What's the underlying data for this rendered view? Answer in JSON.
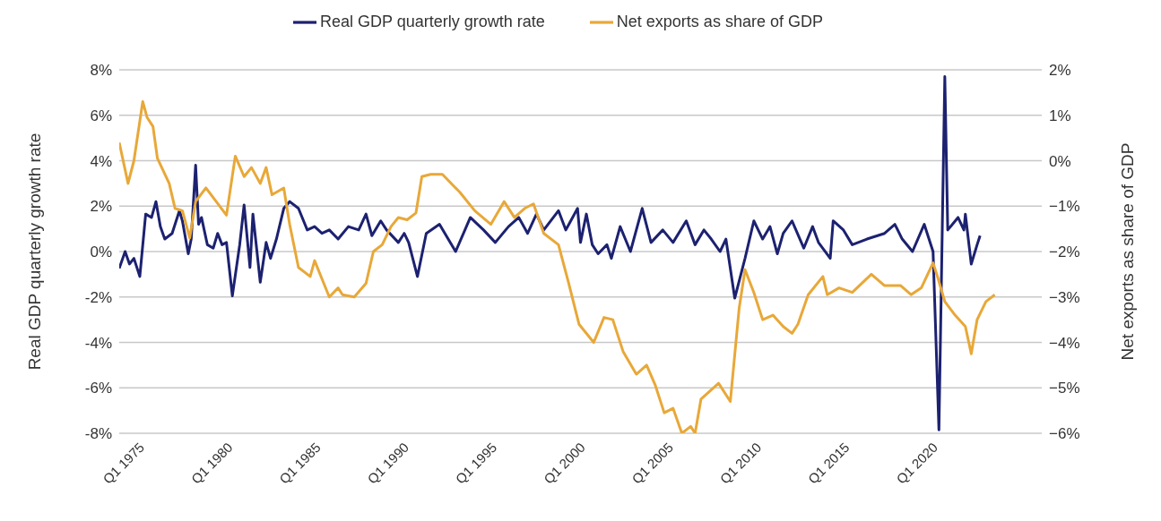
{
  "chart_data": {
    "type": "line",
    "ylabel": "Real GDP quarterly growth rate",
    "y2label": "Net exports as share of GDP",
    "legend": "top",
    "grid": "y",
    "line_style": "solid",
    "xlim": [
      "1973-09",
      "2026-01"
    ],
    "xticks": [
      {
        "value": "1975-01",
        "label": "Q1 1975"
      },
      {
        "value": "1980-01",
        "label": "Q1 1980"
      },
      {
        "value": "1985-01",
        "label": "Q1 1985"
      },
      {
        "value": "1990-01",
        "label": "Q1 1990"
      },
      {
        "value": "1995-01",
        "label": "Q1 1995"
      },
      {
        "value": "2000-01",
        "label": "Q1 2000"
      },
      {
        "value": "2005-01",
        "label": "Q1 2005"
      },
      {
        "value": "2010-01",
        "label": "Q1 2010"
      },
      {
        "value": "2015-01",
        "label": "Q1 2015"
      },
      {
        "value": "2020-01",
        "label": "Q1 2020"
      }
    ],
    "ylim": [
      -8,
      8
    ],
    "yticks": [
      {
        "value": -8,
        "label": "-8%"
      },
      {
        "value": -6,
        "label": "-6%"
      },
      {
        "value": -4,
        "label": "-4%"
      },
      {
        "value": -2,
        "label": "-2%"
      },
      {
        "value": 0,
        "label": "0%"
      },
      {
        "value": 2,
        "label": "2%"
      },
      {
        "value": 4,
        "label": "4%"
      },
      {
        "value": 6,
        "label": "6%"
      },
      {
        "value": 8,
        "label": "8%"
      }
    ],
    "y2lim": [
      -6,
      2
    ],
    "y2ticks": [
      {
        "value": -6,
        "label": "−6%"
      },
      {
        "value": -5,
        "label": "−5%"
      },
      {
        "value": -4,
        "label": "−4%"
      },
      {
        "value": -3,
        "label": "−3%"
      },
      {
        "value": -2,
        "label": "−2%"
      },
      {
        "value": -1,
        "label": "−1%"
      },
      {
        "value": 0,
        "label": "0%"
      },
      {
        "value": 1,
        "label": "1%"
      },
      {
        "value": 2,
        "label": "2%"
      }
    ],
    "series": [
      {
        "name": "Real GDP quarterly growth rate",
        "color": "#1c2170",
        "x": [
          "1973-09",
          "1974-01",
          "1974-04",
          "1974-07",
          "1974-11",
          "1975-03",
          "1975-07",
          "1975-10",
          "1976-01",
          "1976-04",
          "1976-09",
          "1977-02",
          "1977-04",
          "1977-08",
          "1977-10",
          "1978-01",
          "1978-03",
          "1978-05",
          "1978-09",
          "1979-01",
          "1979-04",
          "1979-07",
          "1979-10",
          "1980-02",
          "1980-07",
          "1980-10",
          "1981-02",
          "1981-04",
          "1981-09",
          "1982-01",
          "1982-04",
          "1982-08",
          "1983-01",
          "1983-05",
          "1983-11",
          "1984-05",
          "1984-10",
          "1985-03",
          "1985-08",
          "1986-02",
          "1986-09",
          "1987-04",
          "1987-09",
          "1988-01",
          "1988-07",
          "1988-11",
          "1989-07",
          "1989-11",
          "1990-02",
          "1990-08",
          "1991-02",
          "1991-11",
          "1992-10",
          "1993-08",
          "1994-05",
          "1995-01",
          "1995-10",
          "1996-05",
          "1996-11",
          "1997-05",
          "1997-10",
          "1998-08",
          "1999-01",
          "1999-09",
          "1999-11",
          "2000-03",
          "2000-07",
          "2000-11",
          "2001-05",
          "2001-08",
          "2002-02",
          "2002-09",
          "2003-05",
          "2003-11",
          "2004-07",
          "2005-02",
          "2005-11",
          "2006-05",
          "2006-11",
          "2007-04",
          "2007-10",
          "2008-02",
          "2008-08",
          "2009-03",
          "2009-09",
          "2010-03",
          "2010-08",
          "2011-01",
          "2011-05",
          "2011-11",
          "2012-07",
          "2013-01",
          "2013-05",
          "2014-01",
          "2014-03",
          "2014-10",
          "2015-04",
          "2016-02",
          "2017-02",
          "2017-09",
          "2018-02",
          "2018-09",
          "2019-05",
          "2019-11",
          "2020-03",
          "2020-07",
          "2020-09",
          "2021-04",
          "2021-08",
          "2021-09",
          "2022-01",
          "2022-05",
          "2022-07"
        ],
        "values": [
          -0.74,
          0,
          -0.55,
          -0.3,
          -1.1,
          1.65,
          1.5,
          2.2,
          1.1,
          0.55,
          0.8,
          1.8,
          1.35,
          -0.1,
          0.55,
          3.8,
          1.2,
          1.5,
          0.3,
          0.15,
          0.8,
          0.3,
          0.4,
          -1.95,
          0.3,
          2.05,
          -0.7,
          1.65,
          -1.35,
          0.4,
          -0.3,
          0.55,
          1.9,
          2.2,
          1.9,
          0.95,
          1.1,
          0.8,
          0.95,
          0.55,
          1.1,
          0.95,
          1.65,
          0.7,
          1.35,
          0.95,
          0.4,
          0.8,
          0.4,
          -1.1,
          0.8,
          1.2,
          0,
          1.5,
          0.95,
          0.4,
          1.1,
          1.5,
          0.8,
          1.65,
          0.95,
          1.8,
          0.95,
          1.9,
          0.4,
          1.65,
          0.3,
          -0.1,
          0.3,
          -0.3,
          1.1,
          0,
          1.9,
          0.4,
          0.95,
          0.4,
          1.35,
          0.3,
          0.95,
          0.55,
          0,
          0.55,
          -2.05,
          -0.3,
          1.35,
          0.55,
          1.1,
          -0.1,
          0.8,
          1.35,
          0.15,
          1.1,
          0.4,
          -0.3,
          1.35,
          0.95,
          0.3,
          0.55,
          0.8,
          1.2,
          0.55,
          0,
          1.2,
          0,
          -7.85,
          7.7,
          0.95,
          1.5,
          0.95,
          1.65,
          -0.55,
          0.3,
          0.7
        ]
      },
      {
        "name": "Net exports as share of GDP",
        "color": "#e8a838",
        "axis": "y2",
        "x": [
          "1973-09",
          "1974-03",
          "1974-07",
          "1975-01",
          "1975-04",
          "1975-08",
          "1975-11",
          "1976-07",
          "1976-11",
          "1977-04",
          "1977-09",
          "1978-01",
          "1978-08",
          "1979-03",
          "1979-10",
          "1980-04",
          "1980-10",
          "1981-03",
          "1981-09",
          "1982-01",
          "1982-05",
          "1983-01",
          "1983-05",
          "1983-11",
          "1984-07",
          "1984-10",
          "1985-03",
          "1985-08",
          "1986-02",
          "1986-05",
          "1987-01",
          "1987-09",
          "1988-02",
          "1988-08",
          "1989-02",
          "1989-07",
          "1990-01",
          "1990-07",
          "1990-11",
          "1991-05",
          "1992-01",
          "1993-01",
          "1993-11",
          "1994-10",
          "1995-07",
          "1996-02",
          "1996-09",
          "1997-03",
          "1997-10",
          "1998-08",
          "1999-03",
          "1999-10",
          "2000-08",
          "2001-03",
          "2001-09",
          "2002-04",
          "2003-01",
          "2003-08",
          "2004-02",
          "2004-08",
          "2005-02",
          "2005-08",
          "2006-02",
          "2006-05",
          "2006-09",
          "2007-09",
          "2008-05",
          "2008-11",
          "2009-03",
          "2009-09",
          "2010-03",
          "2010-10",
          "2011-05",
          "2011-11",
          "2012-03",
          "2012-10",
          "2013-08",
          "2013-11",
          "2014-07",
          "2015-04",
          "2016-05",
          "2017-02",
          "2018-01",
          "2018-08",
          "2019-03",
          "2019-11",
          "2020-02",
          "2020-07",
          "2021-02",
          "2021-09",
          "2022-01",
          "2022-05",
          "2022-11",
          "2023-05"
        ],
        "values": [
          0.4,
          -0.5,
          0,
          1.3,
          0.95,
          0.75,
          0.05,
          -0.5,
          -1.05,
          -1.1,
          -1.7,
          -0.9,
          -0.6,
          -0.9,
          -1.2,
          0.1,
          -0.35,
          -0.15,
          -0.5,
          -0.15,
          -0.75,
          -0.6,
          -1.4,
          -2.35,
          -2.55,
          -2.2,
          -2.6,
          -3.0,
          -2.8,
          -2.95,
          -3.0,
          -2.7,
          -2.0,
          -1.85,
          -1.45,
          -1.25,
          -1.3,
          -1.15,
          -0.35,
          -0.3,
          -0.3,
          -0.7,
          -1.1,
          -1.4,
          -0.9,
          -1.25,
          -1.05,
          -0.95,
          -1.6,
          -1.85,
          -2.7,
          -3.6,
          -4.0,
          -3.45,
          -3.5,
          -4.2,
          -4.7,
          -4.5,
          -4.95,
          -5.55,
          -5.45,
          -6.0,
          -5.85,
          -6.0,
          -5.25,
          -4.9,
          -5.3,
          -3.25,
          -2.4,
          -2.9,
          -3.5,
          -3.4,
          -3.65,
          -3.8,
          -3.6,
          -2.95,
          -2.55,
          -2.95,
          -2.8,
          -2.9,
          -2.5,
          -2.75,
          -2.75,
          -2.95,
          -2.8,
          -2.25,
          -2.55,
          -3.1,
          -3.4,
          -3.65,
          -4.25,
          -3.5,
          -3.1,
          -2.95
        ]
      }
    ]
  }
}
